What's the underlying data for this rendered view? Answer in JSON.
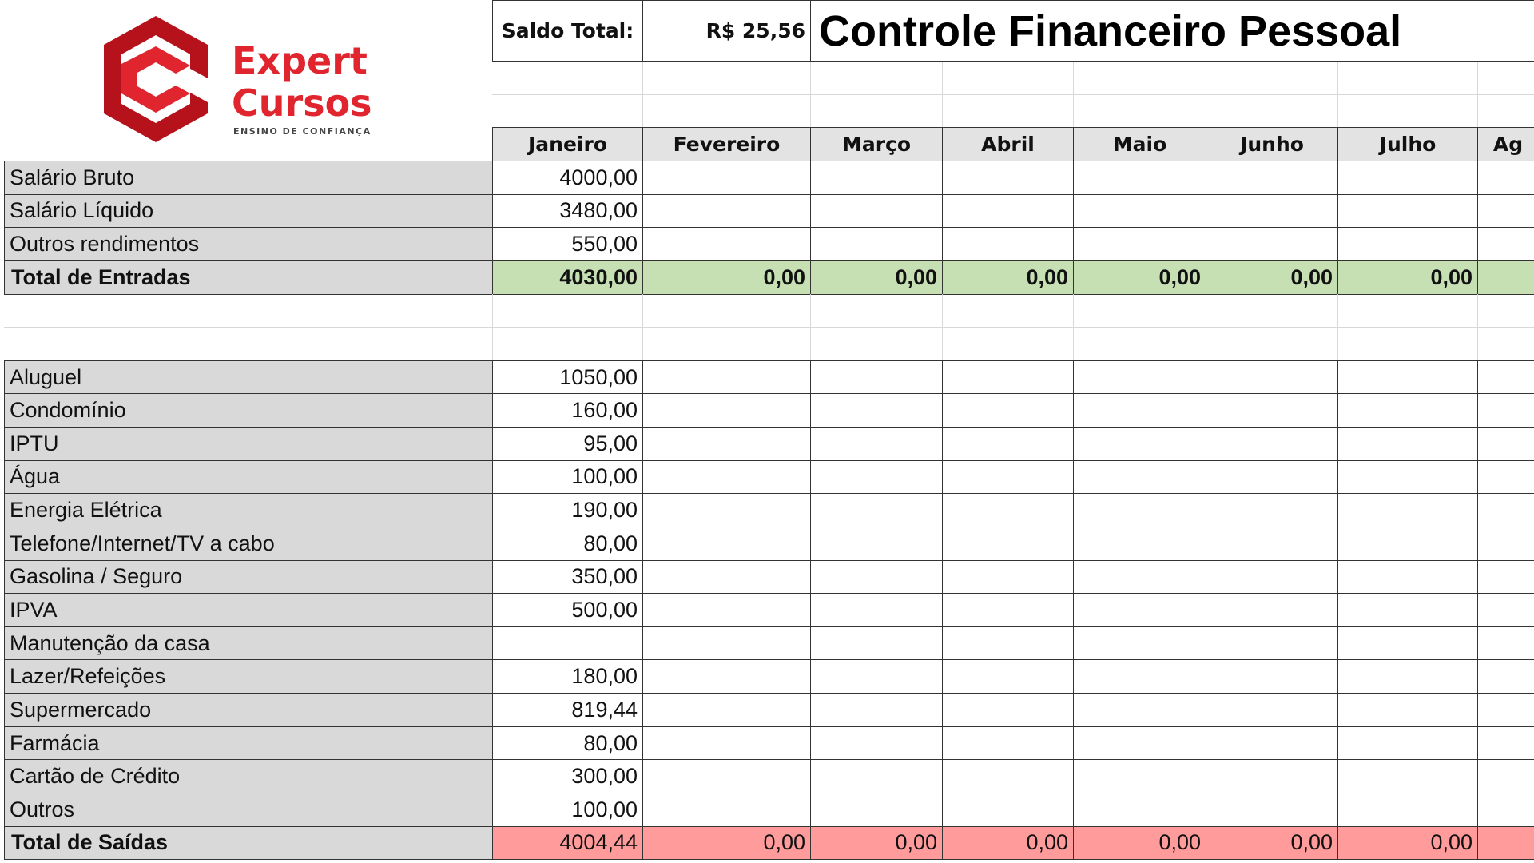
{
  "logo": {
    "line1": "Expert",
    "line2": "Cursos",
    "tagline": "ENSINO DE CONFIANÇA"
  },
  "header": {
    "saldo_label": "Saldo Total:",
    "saldo_value": "R$ 25,56",
    "title": "Controle Financeiro Pessoal"
  },
  "table": {
    "months": [
      "Janeiro",
      "Fevereiro",
      "Março",
      "Abril",
      "Maio",
      "Junho",
      "Julho",
      "Ag"
    ],
    "income": [
      {
        "label": "Salário Bruto",
        "values": [
          "4000,00"
        ]
      },
      {
        "label": "Salário Líquido",
        "values": [
          "3480,00"
        ]
      },
      {
        "label": "Outros rendimentos",
        "values": [
          "550,00"
        ]
      },
      {
        "label": "Total de Entradas",
        "values": [
          "4030,00",
          "0,00",
          "0,00",
          "0,00",
          "0,00",
          "0,00",
          "0,00"
        ]
      }
    ],
    "expenses": [
      {
        "label": "Aluguel",
        "values": [
          "1050,00"
        ]
      },
      {
        "label": "Condomínio",
        "values": [
          "160,00"
        ]
      },
      {
        "label": "IPTU",
        "values": [
          "95,00"
        ]
      },
      {
        "label": "Água",
        "values": [
          "100,00"
        ]
      },
      {
        "label": "Energia Elétrica",
        "values": [
          "190,00"
        ]
      },
      {
        "label": "Telefone/Internet/TV a cabo",
        "values": [
          "80,00"
        ]
      },
      {
        "label": "Gasolina / Seguro",
        "values": [
          "350,00"
        ]
      },
      {
        "label": "IPVA",
        "values": [
          "500,00"
        ]
      },
      {
        "label": "Manutenção da casa",
        "values": []
      },
      {
        "label": "Lazer/Refeições",
        "values": [
          "180,00"
        ]
      },
      {
        "label": "Supermercado",
        "values": [
          "819,44"
        ]
      },
      {
        "label": "Farmácia",
        "values": [
          "80,00"
        ]
      },
      {
        "label": "Cartão de Crédito",
        "values": [
          "300,00"
        ]
      },
      {
        "label": "Outros",
        "values": [
          "100,00"
        ]
      },
      {
        "label": "Total de Saídas",
        "values": [
          "4004,44",
          "0,00",
          "0,00",
          "0,00",
          "0,00",
          "0,00",
          "0,00"
        ]
      }
    ]
  }
}
